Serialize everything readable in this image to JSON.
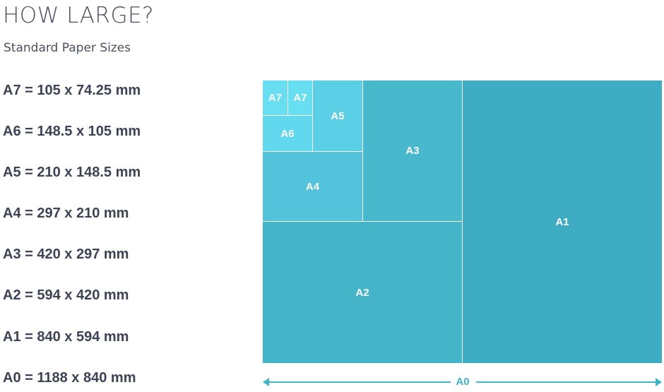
{
  "header": {
    "title": "HOW LARGE?",
    "subtitle": "Standard Paper Sizes"
  },
  "sizes": [
    {
      "text": "A7 = 105 x 74.25 mm"
    },
    {
      "text": "A6 = 148.5 x 105 mm"
    },
    {
      "text": "A5 = 210 x 148.5 mm"
    },
    {
      "text": "A4 = 297 x 210 mm"
    },
    {
      "text": "A3 = 420 x 297 mm"
    },
    {
      "text": "A2 = 594 x 420 mm"
    },
    {
      "text": "A1 = 840 x 594 mm"
    },
    {
      "text": "A0 = 1188 x 840 mm"
    }
  ],
  "diagram": {
    "sheets": {
      "a1": "A1",
      "a2": "A2",
      "a3": "A3",
      "a4": "A4",
      "a5": "A5",
      "a6": "A6",
      "a7_left": "A7",
      "a7_right": "A7"
    },
    "width_label": "A0",
    "colors": {
      "a0_a1": "#3eadc3",
      "a2": "#45b4c9",
      "a3": "#48b8cd",
      "a4": "#52c3da",
      "a5": "#5bcfe5",
      "a6": "#62d8ee",
      "a7": "#68def2",
      "divider": "#ffffff",
      "arrow": "#3fb5c8"
    }
  }
}
